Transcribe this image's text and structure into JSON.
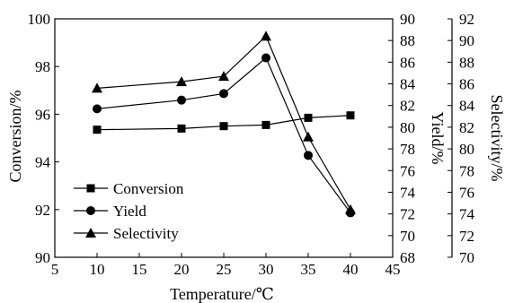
{
  "chart_data": {
    "type": "line",
    "title": "",
    "xlabel": "Temperature/℃",
    "xlim": [
      5,
      45
    ],
    "x_ticks": [
      "5",
      "10",
      "15",
      "20",
      "25",
      "30",
      "35",
      "40",
      "45"
    ],
    "x": [
      10,
      20,
      25,
      30,
      35,
      40
    ],
    "axes": [
      {
        "id": "conversion",
        "label": "Conversion/%",
        "position": "left",
        "ylim": [
          90,
          100
        ],
        "ticks": [
          "90",
          "92",
          "94",
          "96",
          "98",
          "100"
        ]
      },
      {
        "id": "yield",
        "label": "Yield/%",
        "position": "right",
        "ylim": [
          68,
          90
        ],
        "ticks": [
          "68",
          "70",
          "72",
          "74",
          "76",
          "78",
          "80",
          "82",
          "84",
          "86",
          "88",
          "90"
        ]
      },
      {
        "id": "selectivity",
        "label": "Selectivity/%",
        "position": "right-offset",
        "ylim": [
          70,
          92
        ],
        "ticks": [
          "70",
          "72",
          "74",
          "76",
          "78",
          "80",
          "82",
          "84",
          "86",
          "88",
          "90",
          "92"
        ]
      }
    ],
    "series": [
      {
        "name": "Conversion",
        "axis": "conversion",
        "marker": "square",
        "values": [
          95.35,
          95.4,
          95.5,
          95.55,
          95.85,
          95.95
        ]
      },
      {
        "name": "Yield",
        "axis": "yield",
        "marker": "circle",
        "values": [
          81.7,
          82.5,
          83.1,
          86.4,
          77.4,
          72.1
        ]
      },
      {
        "name": "Selectivity",
        "axis": "selectivity",
        "marker": "triangle",
        "values": [
          85.6,
          86.2,
          86.7,
          90.4,
          81.1,
          74.4
        ]
      }
    ],
    "legend": "bottom-left",
    "grid": false,
    "colors": {
      "line": "#000000",
      "background": "#ffffff"
    }
  }
}
